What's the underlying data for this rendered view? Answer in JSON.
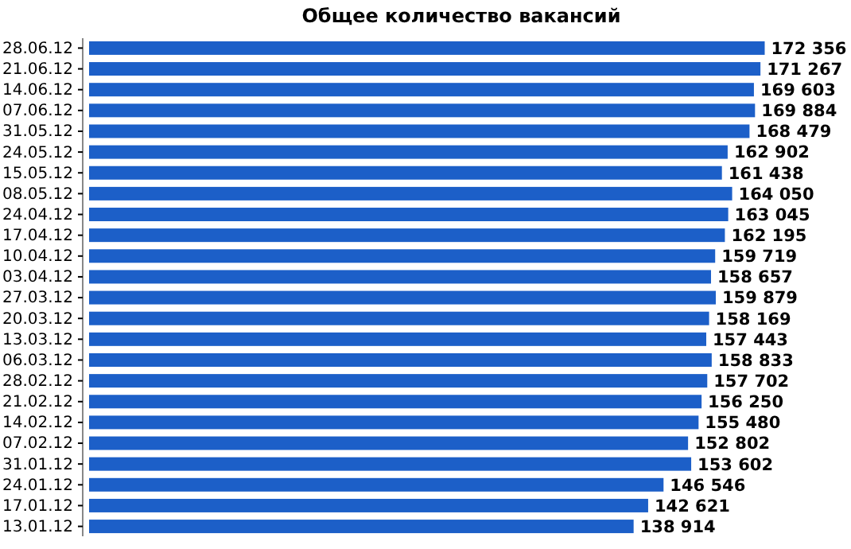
{
  "chart_data": {
    "type": "bar",
    "title": "Общее количество вакансий",
    "orientation": "horizontal",
    "categories": [
      "28.06.12",
      "21.06.12",
      "14.06.12",
      "07.06.12",
      "31.05.12",
      "24.05.12",
      "15.05.12",
      "08.05.12",
      "24.04.12",
      "17.04.12",
      "10.04.12",
      "03.04.12",
      "27.03.12",
      "20.03.12",
      "13.03.12",
      "06.03.12",
      "28.02.12",
      "21.02.12",
      "14.02.12",
      "07.02.12",
      "31.01.12",
      "24.01.12",
      "17.01.12",
      "13.01.12"
    ],
    "values": [
      172356,
      171267,
      169603,
      169884,
      168479,
      162902,
      161438,
      164050,
      163045,
      162195,
      159719,
      158657,
      159879,
      158169,
      157443,
      158833,
      157702,
      156250,
      155480,
      152802,
      153602,
      146546,
      142621,
      138914
    ],
    "color": "#1c5fc8",
    "data_labels": true
  }
}
